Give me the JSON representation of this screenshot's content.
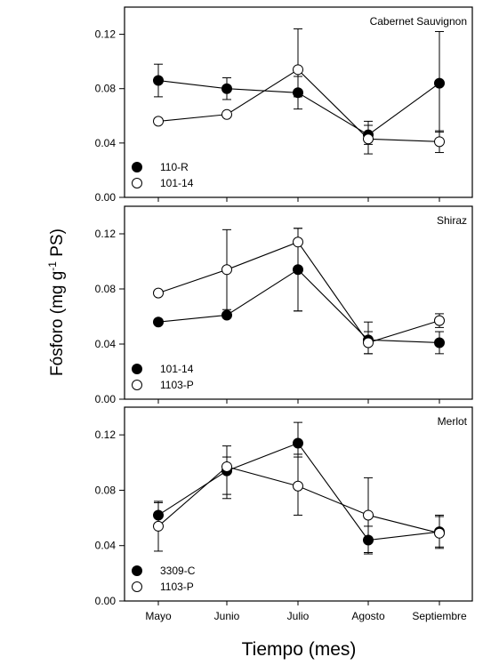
{
  "figure": {
    "ylabel_main": "Fósforo (mg g",
    "ylabel_sup": "-1",
    "ylabel_tail": " PS)",
    "xlabel": "Tiempo (mes)"
  },
  "chart_data": [
    {
      "type": "line",
      "title": "Cabernet Sauvignon",
      "categories": [
        "Mayo",
        "Junio",
        "Julio",
        "Agosto",
        "Septiembre"
      ],
      "ylim": [
        0,
        0.14
      ],
      "yticks": [
        "0.00",
        "0.04",
        "0.08",
        "0.12"
      ],
      "legend_position": "bottom-left",
      "series": [
        {
          "name": "110-R",
          "marker": "filled",
          "values": [
            0.086,
            0.08,
            0.077,
            0.046,
            0.084
          ],
          "err_low": [
            0.012,
            0.008,
            0.012,
            0.007,
            0.036
          ],
          "err_high": [
            0.012,
            0.008,
            0.012,
            0.01,
            0.038
          ]
        },
        {
          "name": "101-14",
          "marker": "open",
          "values": [
            0.056,
            0.061,
            0.094,
            0.043,
            0.041
          ],
          "err_low": [
            0.0,
            0.0,
            0.02,
            0.011,
            0.008
          ],
          "err_high": [
            0.0,
            0.0,
            0.03,
            0.01,
            0.008
          ]
        }
      ]
    },
    {
      "type": "line",
      "title": "Shiraz",
      "categories": [
        "Mayo",
        "Junio",
        "Julio",
        "Agosto",
        "Septiembre"
      ],
      "ylim": [
        0,
        0.14
      ],
      "yticks": [
        "0.00",
        "0.04",
        "0.08",
        "0.12"
      ],
      "legend_position": "bottom-left",
      "series": [
        {
          "name": "101-14",
          "marker": "filled",
          "values": [
            0.056,
            0.061,
            0.094,
            0.043,
            0.041
          ],
          "err_low": [
            0.0,
            0.0,
            0.03,
            0.01,
            0.008
          ],
          "err_high": [
            0.0,
            0.0,
            0.03,
            0.013,
            0.008
          ]
        },
        {
          "name": "1103-P",
          "marker": "open",
          "values": [
            0.077,
            0.094,
            0.114,
            0.041,
            0.057
          ],
          "err_low": [
            0.0,
            0.029,
            0.05,
            0.008,
            0.005
          ],
          "err_high": [
            0.0,
            0.029,
            0.01,
            0.008,
            0.005
          ]
        }
      ]
    },
    {
      "type": "line",
      "title": "Merlot",
      "categories": [
        "Mayo",
        "Junio",
        "Julio",
        "Agosto",
        "Septiembre"
      ],
      "ylim": [
        0,
        0.14
      ],
      "yticks": [
        "0.00",
        "0.04",
        "0.08",
        "0.12"
      ],
      "legend_position": "bottom-left",
      "series": [
        {
          "name": "3309-C",
          "marker": "filled",
          "values": [
            0.062,
            0.094,
            0.114,
            0.044,
            0.05
          ],
          "err_low": [
            0.009,
            0.02,
            0.01,
            0.01,
            0.012
          ],
          "err_high": [
            0.009,
            0.01,
            0.015,
            0.01,
            0.012
          ]
        },
        {
          "name": "1103-P",
          "marker": "open",
          "values": [
            0.054,
            0.097,
            0.083,
            0.062,
            0.049
          ],
          "err_low": [
            0.018,
            0.02,
            0.021,
            0.027,
            0.01
          ],
          "err_high": [
            0.018,
            0.015,
            0.023,
            0.027,
            0.012
          ]
        }
      ]
    }
  ]
}
